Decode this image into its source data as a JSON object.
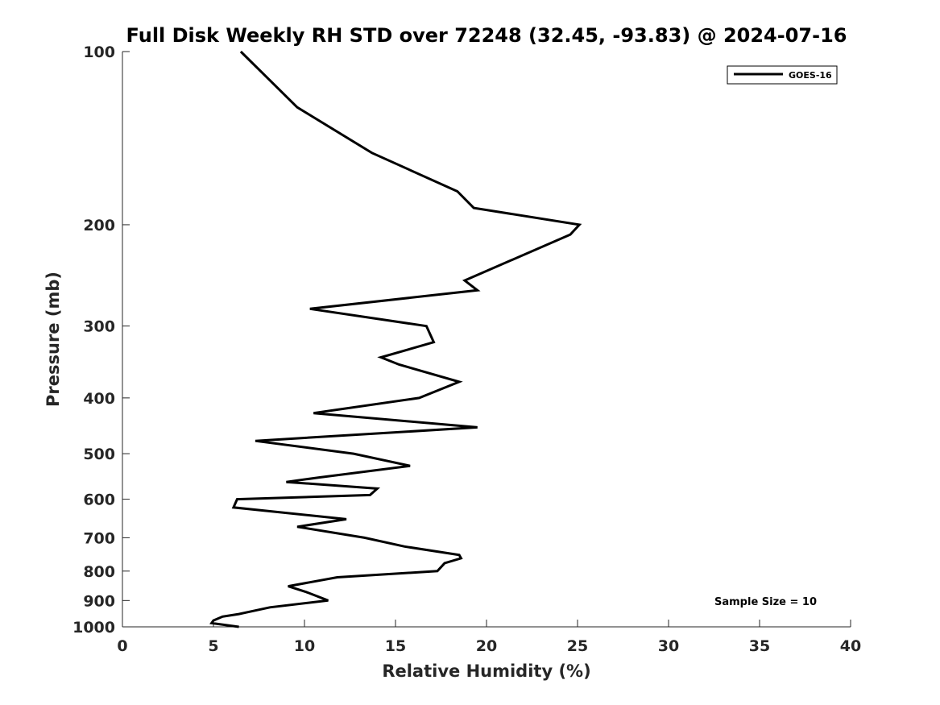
{
  "chart_data": {
    "type": "line",
    "title": "Full Disk Weekly RH STD over 72248 (32.45, -93.83) @ 2024-07-16",
    "xlabel": "Relative Humidity (%)",
    "ylabel": "Pressure (mb)",
    "xlim": [
      0,
      40
    ],
    "ylim": [
      1000,
      100
    ],
    "yscale": "log",
    "x_ticks": [
      0,
      5,
      10,
      15,
      20,
      25,
      30,
      35,
      40
    ],
    "x_tick_labels": [
      "0",
      "5",
      "10",
      "15",
      "20",
      "25",
      "30",
      "35",
      "40"
    ],
    "y_ticks": [
      100,
      200,
      300,
      400,
      500,
      600,
      700,
      800,
      900,
      1000
    ],
    "y_tick_labels": [
      "100",
      "200",
      "300",
      "400",
      "500",
      "600",
      "700",
      "800",
      "900",
      "1000"
    ],
    "grid": false,
    "legend_position": "top-right",
    "line_color": "#000000",
    "series": [
      {
        "name": "GOES-16",
        "points": [
          [
            6.5,
            100
          ],
          [
            9.6,
            125
          ],
          [
            13.7,
            150
          ],
          [
            18.4,
            175
          ],
          [
            19.3,
            187
          ],
          [
            25.1,
            200
          ],
          [
            24.6,
            208
          ],
          [
            18.8,
            250
          ],
          [
            19.5,
            260
          ],
          [
            10.3,
            280
          ],
          [
            16.7,
            300
          ],
          [
            17.1,
            320
          ],
          [
            14.2,
            340
          ],
          [
            15.2,
            350
          ],
          [
            18.5,
            375
          ],
          [
            16.3,
            400
          ],
          [
            10.5,
            425
          ],
          [
            19.5,
            450
          ],
          [
            7.3,
            475
          ],
          [
            12.7,
            500
          ],
          [
            15.8,
            525
          ],
          [
            10.8,
            550
          ],
          [
            9.0,
            560
          ],
          [
            14.0,
            575
          ],
          [
            13.6,
            590
          ],
          [
            6.3,
            600
          ],
          [
            6.1,
            620
          ],
          [
            12.3,
            650
          ],
          [
            9.6,
            670
          ],
          [
            13.3,
            700
          ],
          [
            15.5,
            725
          ],
          [
            18.5,
            750
          ],
          [
            18.6,
            760
          ],
          [
            17.7,
            775
          ],
          [
            17.3,
            800
          ],
          [
            11.8,
            820
          ],
          [
            9.1,
            850
          ],
          [
            10.1,
            870
          ],
          [
            11.3,
            900
          ],
          [
            8.1,
            925
          ],
          [
            6.4,
            950
          ],
          [
            5.5,
            960
          ],
          [
            5.0,
            975
          ],
          [
            4.9,
            985
          ],
          [
            6.4,
            1000
          ]
        ]
      }
    ],
    "annotation": "Sample Size = 10"
  }
}
